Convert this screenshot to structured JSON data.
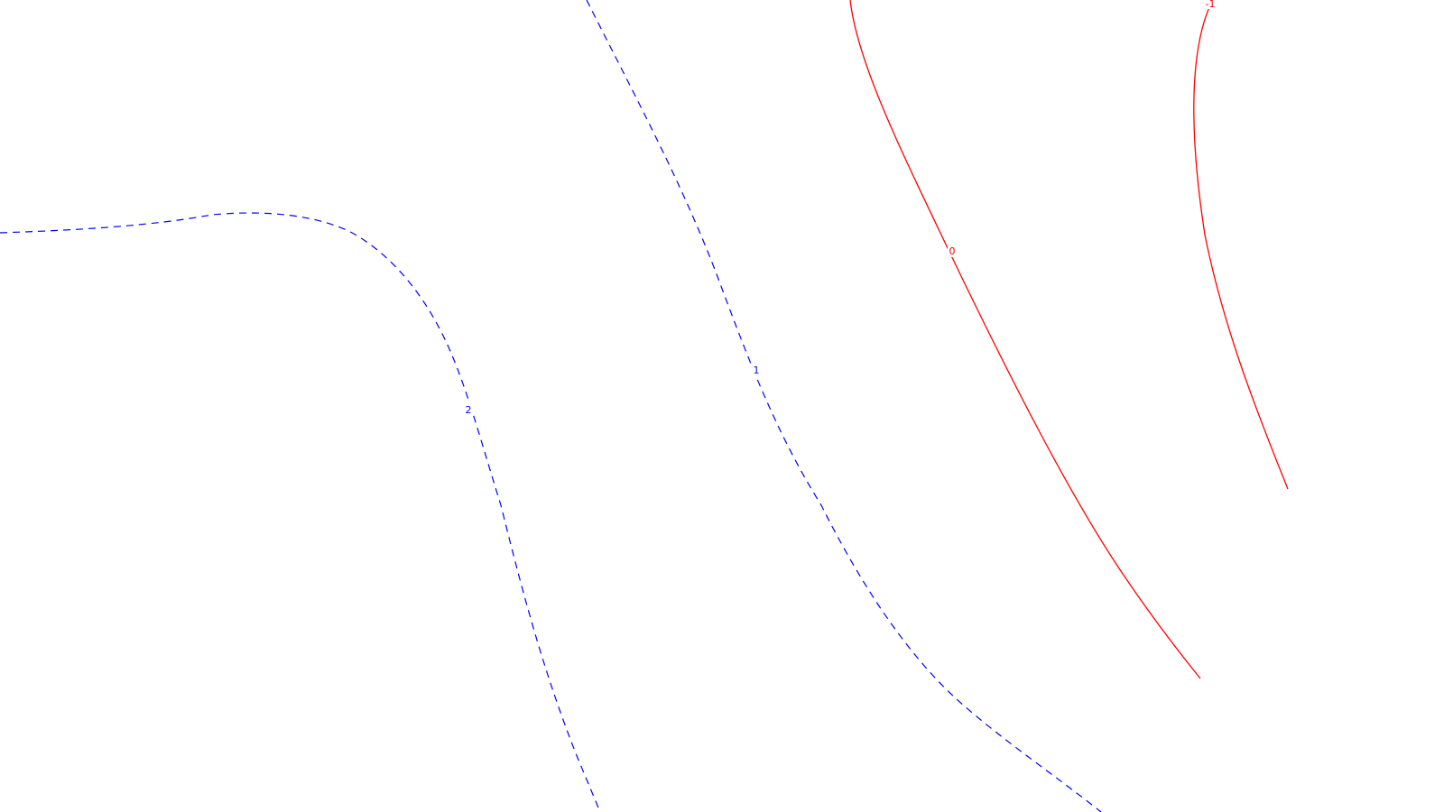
{
  "contours": [
    {
      "label": "2",
      "style": "dashed",
      "color": "#0000ff"
    },
    {
      "label": "1",
      "style": "dashed",
      "color": "#0000ff"
    },
    {
      "label": "0",
      "style": "solid",
      "color": "#ff0000"
    },
    {
      "label": "-1",
      "style": "solid",
      "color": "#ff0000"
    }
  ],
  "colors": {
    "background": "#ffffff",
    "positive_contour": "#0000ff",
    "zero_negative_contour": "#ff0000"
  }
}
